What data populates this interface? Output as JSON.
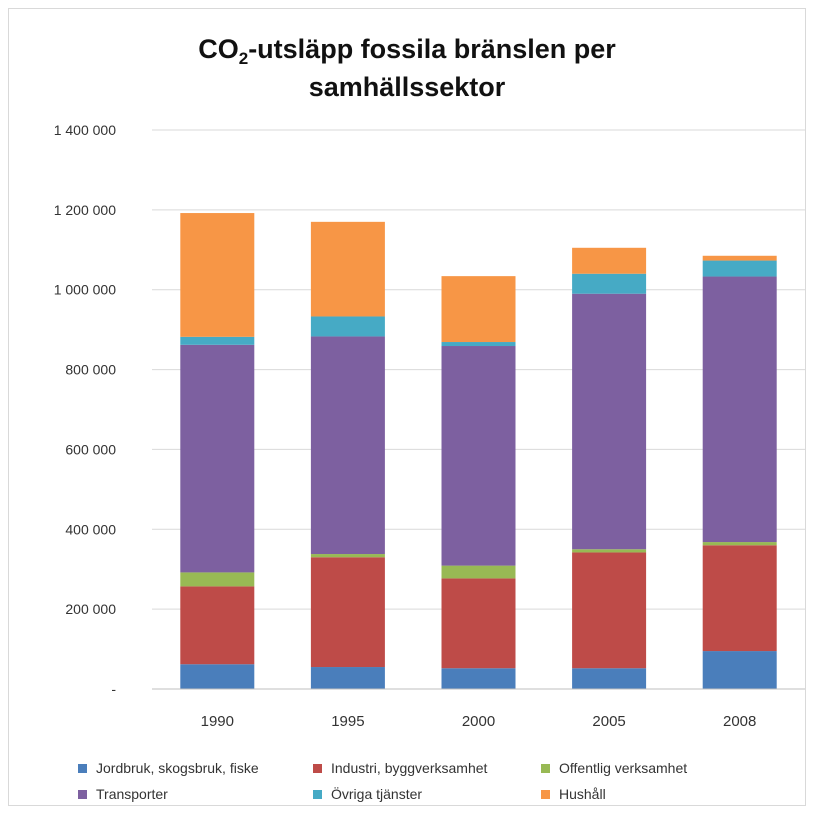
{
  "title": {
    "main": "CO",
    "subscript": "2",
    "rest": "-utsläpp fossila bränslen per",
    "line2": "samhällssektor"
  },
  "colors": {
    "grid": "#d9d9d9",
    "axis": "#bfbfbf",
    "text": "#333333",
    "series": [
      "#4a7ebb",
      "#be4b48",
      "#98b954",
      "#7d60a0",
      "#46aac5",
      "#f79646"
    ]
  },
  "chart_data": {
    "type": "bar",
    "stacked": true,
    "categories": [
      "1990",
      "1995",
      "2000",
      "2005",
      "2008"
    ],
    "ylim": [
      0,
      1400000
    ],
    "yticks": [
      0,
      200000,
      400000,
      600000,
      800000,
      1000000,
      1200000,
      1400000
    ],
    "ytick_labels": [
      "-",
      "200 000",
      "400 000",
      "600 000",
      "800 000",
      "1 000 000",
      "1 200 000",
      "1 400 000"
    ],
    "grid": true,
    "legend_position": "bottom",
    "series": [
      {
        "name": "Jordbruk, skogsbruk, fiske",
        "values": [
          62000,
          55000,
          52000,
          52000,
          95000
        ]
      },
      {
        "name": "Industri, byggverksamhet",
        "values": [
          195000,
          275000,
          225000,
          290000,
          265000
        ]
      },
      {
        "name": "Offentlig verksamhet",
        "values": [
          35000,
          8000,
          32000,
          8000,
          8000
        ]
      },
      {
        "name": "Transporter",
        "values": [
          570000,
          545000,
          550000,
          640000,
          665000
        ]
      },
      {
        "name": "Övriga tjänster",
        "values": [
          20000,
          50000,
          10000,
          50000,
          40000
        ]
      },
      {
        "name": "Hushåll",
        "values": [
          310000,
          237000,
          165000,
          65000,
          12000
        ]
      }
    ]
  }
}
